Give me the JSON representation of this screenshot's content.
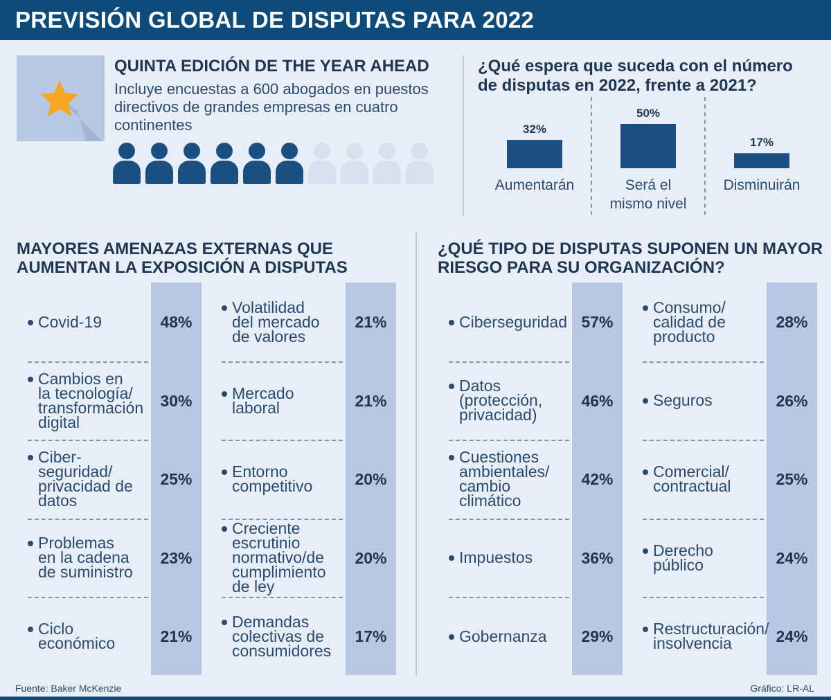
{
  "title": "PREVISIÓN GLOBAL DE DISPUTAS PARA 2022",
  "intro": {
    "title": "QUINTA EDICIÓN DE THE YEAR AHEAD",
    "text": "Incluye encuestas a 600 abogados en puestos directivos de grandes empresas en cuatro continentes",
    "icon": "star-icon",
    "people_total": 10,
    "people_highlighted": 6
  },
  "colors": {
    "navy": "#0e4b7a",
    "bar": "#1c4f7f",
    "band": "#b8c8e2",
    "person_dark": "#1c4f7f",
    "person_light": "#d6e0ef",
    "star": "#f5a623"
  },
  "chart_data": [
    {
      "type": "bar",
      "title": "¿Qué espera que suceda con el número de disputas en 2022, frente a 2021?",
      "categories": [
        "Aumentarán",
        "Será el mismo nivel",
        "Disminuirán"
      ],
      "values": [
        32,
        50,
        17
      ],
      "value_labels": [
        "32%",
        "50%",
        "17%"
      ],
      "category_lines": [
        [
          "Aumentarán"
        ],
        [
          "Será el",
          "mismo nivel"
        ],
        [
          "Disminuirán"
        ]
      ],
      "ylim": [
        0,
        50
      ]
    },
    {
      "type": "table",
      "title": "MAYORES AMENAZAS EXTERNAS QUE AUMENTAN LA EXPOSICIÓN A DISPUTAS",
      "columns": [
        [
          {
            "label": [
              "Covid-19"
            ],
            "value": 48,
            "display": "48%"
          },
          {
            "label": [
              "Cambios en",
              "la tecnología/",
              "transformación",
              "digital"
            ],
            "value": 30,
            "display": "30%"
          },
          {
            "label": [
              "Ciber-",
              "seguridad/",
              "privacidad de",
              "datos"
            ],
            "value": 25,
            "display": "25%"
          },
          {
            "label": [
              "Problemas",
              "en la cadena",
              "de suministro"
            ],
            "value": 23,
            "display": "23%"
          },
          {
            "label": [
              "Ciclo",
              "económico"
            ],
            "value": 21,
            "display": "21%"
          }
        ],
        [
          {
            "label": [
              "Volatilidad",
              "del mercado",
              "de valores"
            ],
            "value": 21,
            "display": "21%"
          },
          {
            "label": [
              "Mercado",
              "laboral"
            ],
            "value": 21,
            "display": "21%"
          },
          {
            "label": [
              "Entorno",
              "competitivo"
            ],
            "value": 20,
            "display": "20%"
          },
          {
            "label": [
              "Creciente",
              "escrutinio",
              "normativo/de",
              "cumplimiento",
              "de ley"
            ],
            "value": 20,
            "display": "20%"
          },
          {
            "label": [
              "Demandas",
              "colectivas de",
              "consumidores"
            ],
            "value": 17,
            "display": "17%"
          }
        ]
      ]
    },
    {
      "type": "table",
      "title": "¿QUÉ TIPO DE DISPUTAS SUPONEN UN MAYOR RIESGO PARA SU ORGANIZACIÓN?",
      "columns": [
        [
          {
            "label": [
              "Ciberseguridad"
            ],
            "value": 57,
            "display": "57%"
          },
          {
            "label": [
              "Datos",
              "(protección,",
              "privacidad)"
            ],
            "value": 46,
            "display": "46%"
          },
          {
            "label": [
              "Cuestiones",
              "ambientales/",
              "cambio",
              "climático"
            ],
            "value": 42,
            "display": "42%"
          },
          {
            "label": [
              "Impuestos"
            ],
            "value": 36,
            "display": "36%"
          },
          {
            "label": [
              "Gobernanza"
            ],
            "value": 29,
            "display": "29%"
          }
        ],
        [
          {
            "label": [
              "Consumo/",
              "calidad de",
              "producto"
            ],
            "value": 28,
            "display": "28%"
          },
          {
            "label": [
              "Seguros"
            ],
            "value": 26,
            "display": "26%"
          },
          {
            "label": [
              "Comercial/",
              "contractual"
            ],
            "value": 25,
            "display": "25%"
          },
          {
            "label": [
              "Derecho",
              "público"
            ],
            "value": 24,
            "display": "24%"
          },
          {
            "label": [
              "Restructuración/",
              "insolvencia"
            ],
            "value": 24,
            "display": "24%"
          }
        ]
      ]
    }
  ],
  "footer": {
    "source": "Fuente: Baker McKenzie",
    "credit": "Gráfico: LR-AL"
  }
}
